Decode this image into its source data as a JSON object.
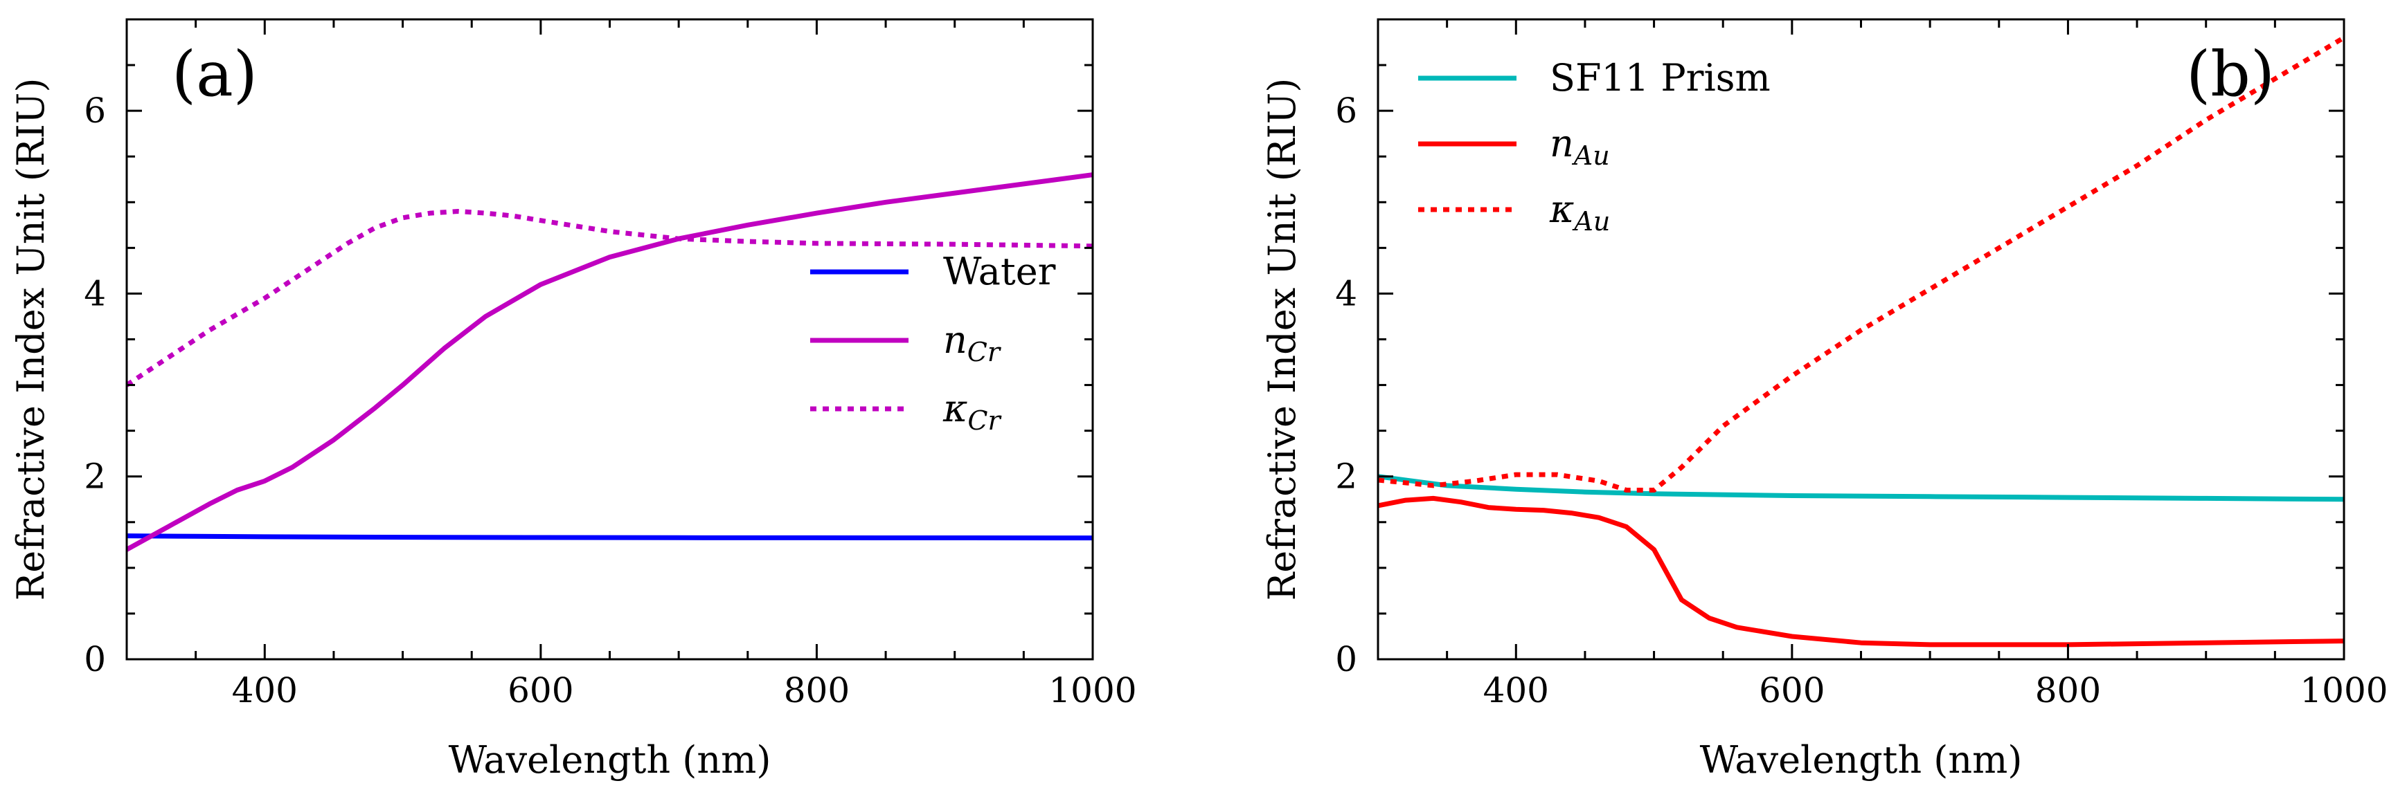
{
  "chart_data": [
    {
      "panel": "(a)",
      "type": "line",
      "xlabel": "Wavelength (nm)",
      "ylabel": "Refractive Index Unit (RIU)",
      "xlim": [
        300,
        1000
      ],
      "ylim": [
        0,
        7
      ],
      "x_ticks": [
        400,
        600,
        800,
        1000
      ],
      "y_ticks": [
        0,
        2,
        4,
        6
      ],
      "legend_position": "right",
      "series": [
        {
          "name": "Water",
          "color": "#0000ff",
          "dash": "solid",
          "x": [
            300,
            350,
            400,
            500,
            600,
            700,
            800,
            900,
            1000
          ],
          "values": [
            1.35,
            1.345,
            1.34,
            1.335,
            1.332,
            1.33,
            1.329,
            1.328,
            1.327
          ]
        },
        {
          "name": "n",
          "sub": "Cr",
          "color": "#c000c0",
          "dash": "solid",
          "x": [
            300,
            330,
            360,
            380,
            400,
            420,
            450,
            480,
            500,
            530,
            560,
            600,
            650,
            700,
            750,
            800,
            850,
            900,
            950,
            1000
          ],
          "values": [
            1.2,
            1.45,
            1.7,
            1.85,
            1.95,
            2.1,
            2.4,
            2.75,
            3.0,
            3.4,
            3.75,
            4.1,
            4.4,
            4.6,
            4.75,
            4.88,
            5.0,
            5.1,
            5.2,
            5.3
          ]
        },
        {
          "name": "κ",
          "sub": "Cr",
          "color": "#c000c0",
          "dash": "dotted",
          "x": [
            300,
            330,
            360,
            400,
            430,
            460,
            480,
            500,
            520,
            540,
            560,
            580,
            600,
            650,
            700,
            750,
            800,
            900,
            1000
          ],
          "values": [
            3.0,
            3.3,
            3.6,
            3.95,
            4.25,
            4.55,
            4.72,
            4.83,
            4.88,
            4.9,
            4.88,
            4.85,
            4.8,
            4.68,
            4.6,
            4.57,
            4.55,
            4.54,
            4.52
          ]
        }
      ]
    },
    {
      "panel": "(b)",
      "type": "line",
      "xlabel": "Wavelength (nm)",
      "ylabel": "Refractive Index Unit (RIU)",
      "xlim": [
        300,
        1000
      ],
      "ylim": [
        0,
        7
      ],
      "x_ticks": [
        400,
        600,
        800,
        1000
      ],
      "y_ticks": [
        0,
        2,
        4,
        6
      ],
      "legend_position": "top-left",
      "series": [
        {
          "name": "SF11 Prism",
          "color": "#00b8b8",
          "dash": "solid",
          "x": [
            300,
            350,
            400,
            450,
            500,
            600,
            700,
            800,
            900,
            1000
          ],
          "values": [
            2.0,
            1.9,
            1.86,
            1.83,
            1.81,
            1.79,
            1.78,
            1.77,
            1.76,
            1.75
          ]
        },
        {
          "name": "n",
          "sub": "Au",
          "color": "#ff0000",
          "dash": "solid",
          "x": [
            300,
            320,
            340,
            360,
            380,
            400,
            420,
            440,
            460,
            480,
            500,
            520,
            540,
            560,
            600,
            650,
            700,
            800,
            900,
            1000
          ],
          "values": [
            1.68,
            1.74,
            1.76,
            1.72,
            1.66,
            1.64,
            1.63,
            1.6,
            1.55,
            1.45,
            1.2,
            0.65,
            0.45,
            0.35,
            0.25,
            0.18,
            0.16,
            0.16,
            0.18,
            0.2
          ]
        },
        {
          "name": "κ",
          "sub": "Au",
          "color": "#ff0000",
          "dash": "dotted",
          "x": [
            300,
            340,
            370,
            400,
            430,
            460,
            480,
            500,
            520,
            550,
            600,
            650,
            700,
            750,
            800,
            850,
            900,
            950,
            1000
          ],
          "values": [
            1.96,
            1.9,
            1.95,
            2.02,
            2.02,
            1.95,
            1.85,
            1.85,
            2.1,
            2.55,
            3.1,
            3.6,
            4.05,
            4.5,
            4.95,
            5.4,
            5.9,
            6.35,
            6.8
          ]
        }
      ]
    }
  ]
}
